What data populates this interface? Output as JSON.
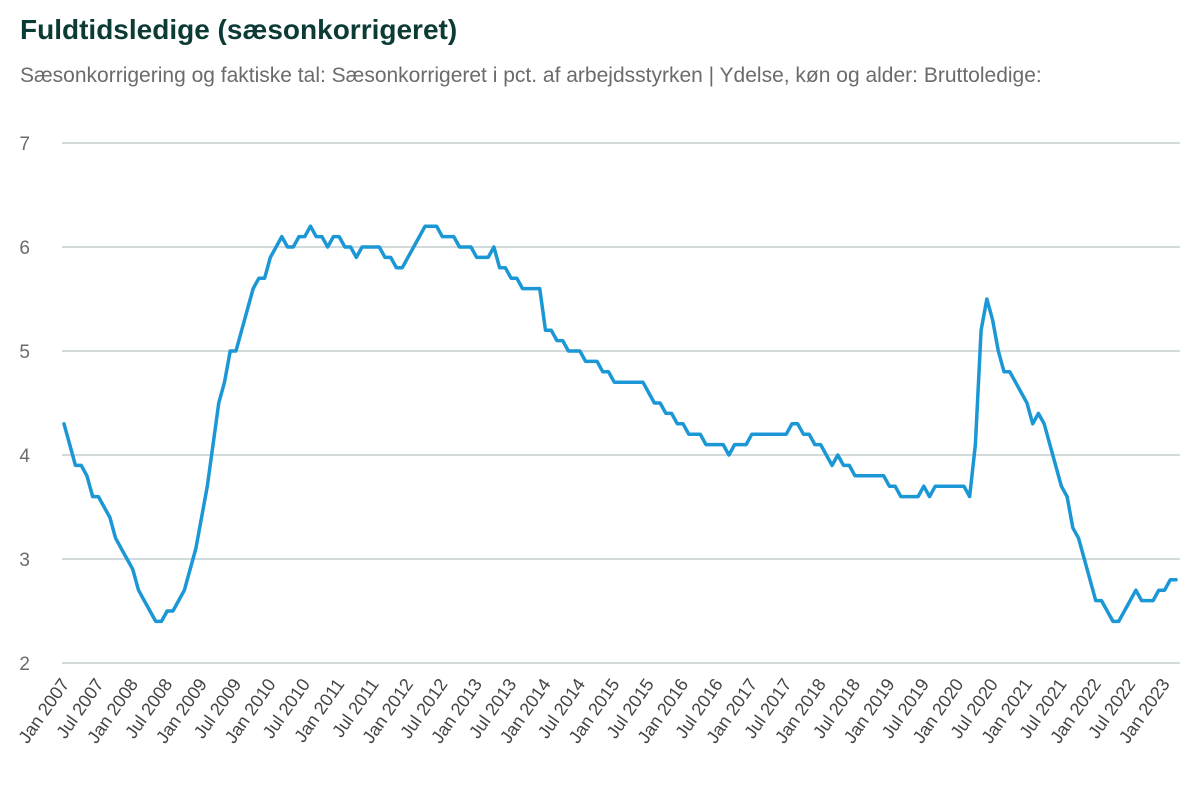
{
  "title": "Fuldtidsledige (sæsonkorrigeret)",
  "subtitle": "Sæsonkorrigering og faktiske tal: Sæsonkorrigeret i pct. af arbejdsstyrken | Ydelse, køn og alder: Bruttoledige:",
  "colors": {
    "line": "#1a97d4",
    "grid": "#b7c4c8",
    "title": "#0b3b34",
    "text": "#6b6b6b"
  },
  "chart_data": {
    "type": "line",
    "title": "Fuldtidsledige (sæsonkorrigeret)",
    "xlabel": "",
    "ylabel": "",
    "ylim": [
      2,
      7
    ],
    "yticks": [
      2,
      3,
      4,
      5,
      6,
      7
    ],
    "grid": true,
    "legend": "none",
    "x_start": "Jan 2007",
    "x_end": "Mar 2023",
    "xticks": [
      "Jan 2007",
      "Jul 2007",
      "Jan 2008",
      "Jul 2008",
      "Jan 2009",
      "Jul 2009",
      "Jan 2010",
      "Jul 2010",
      "Jan 2011",
      "Jul 2011",
      "Jan 2012",
      "Jul 2012",
      "Jan 2013",
      "Jul 2013",
      "Jan 2014",
      "Jul 2014",
      "Jan 2015",
      "Jul 2015",
      "Jan 2016",
      "Jul 2016",
      "Jan 2017",
      "Jul 2017",
      "Jan 2018",
      "Jul 2018",
      "Jan 2019",
      "Jul 2019",
      "Jan 2020",
      "Jul 2020",
      "Jan 2021",
      "Jul 2021",
      "Jan 2022",
      "Jul 2022",
      "Jan 2023"
    ],
    "series": [
      {
        "values": [
          4.3,
          4.1,
          3.9,
          3.9,
          3.8,
          3.6,
          3.6,
          3.5,
          3.4,
          3.2,
          3.1,
          3.0,
          2.9,
          2.7,
          2.6,
          2.5,
          2.4,
          2.4,
          2.5,
          2.5,
          2.6,
          2.7,
          2.9,
          3.1,
          3.4,
          3.7,
          4.1,
          4.5,
          4.7,
          5.0,
          5.0,
          5.2,
          5.4,
          5.6,
          5.7,
          5.7,
          5.9,
          6.0,
          6.1,
          6.0,
          6.0,
          6.1,
          6.1,
          6.2,
          6.1,
          6.1,
          6.0,
          6.1,
          6.1,
          6.0,
          6.0,
          5.9,
          6.0,
          6.0,
          6.0,
          6.0,
          5.9,
          5.9,
          5.8,
          5.8,
          5.9,
          6.0,
          6.1,
          6.2,
          6.2,
          6.2,
          6.1,
          6.1,
          6.1,
          6.0,
          6.0,
          6.0,
          5.9,
          5.9,
          5.9,
          6.0,
          5.8,
          5.8,
          5.7,
          5.7,
          5.6,
          5.6,
          5.6,
          5.6,
          5.2,
          5.2,
          5.1,
          5.1,
          5.0,
          5.0,
          5.0,
          4.9,
          4.9,
          4.9,
          4.8,
          4.8,
          4.7,
          4.7,
          4.7,
          4.7,
          4.7,
          4.7,
          4.6,
          4.5,
          4.5,
          4.4,
          4.4,
          4.3,
          4.3,
          4.2,
          4.2,
          4.2,
          4.1,
          4.1,
          4.1,
          4.1,
          4.0,
          4.1,
          4.1,
          4.1,
          4.2,
          4.2,
          4.2,
          4.2,
          4.2,
          4.2,
          4.2,
          4.3,
          4.3,
          4.2,
          4.2,
          4.1,
          4.1,
          4.0,
          3.9,
          4.0,
          3.9,
          3.9,
          3.8,
          3.8,
          3.8,
          3.8,
          3.8,
          3.8,
          3.7,
          3.7,
          3.6,
          3.6,
          3.6,
          3.6,
          3.7,
          3.6,
          3.7,
          3.7,
          3.7,
          3.7,
          3.7,
          3.7,
          3.6,
          4.1,
          5.2,
          5.5,
          5.3,
          5.0,
          4.8,
          4.8,
          4.7,
          4.6,
          4.5,
          4.3,
          4.4,
          4.3,
          4.1,
          3.9,
          3.7,
          3.6,
          3.3,
          3.2,
          3.0,
          2.8,
          2.6,
          2.6,
          2.5,
          2.4,
          2.4,
          2.5,
          2.6,
          2.7,
          2.6,
          2.6,
          2.6,
          2.7,
          2.7,
          2.8,
          2.8
        ]
      }
    ]
  }
}
